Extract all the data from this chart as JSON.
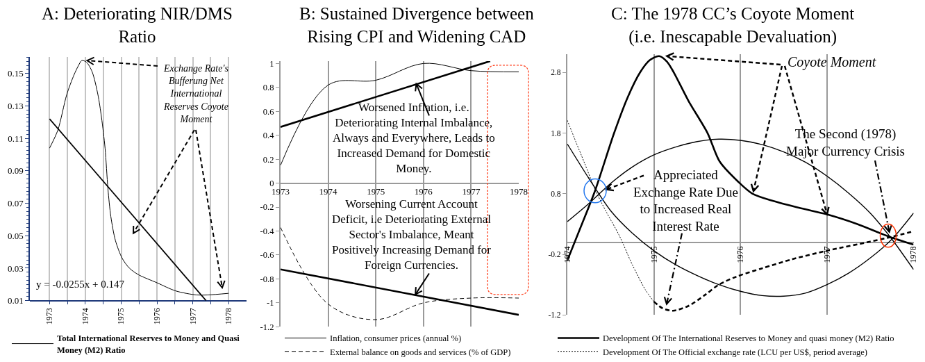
{
  "chart_data": [
    {
      "type": "line",
      "title": "A: Deteriorating NIR/DMS Ratio",
      "series": [
        {
          "name": "Total International Reserves to Money and Quasi Money (M2) Ratio",
          "color": "#000000",
          "x": [
            1973,
            1973.23,
            1973.48,
            1973.68,
            1973.81,
            1973.9,
            1974.03,
            1974.19,
            1974.35,
            1974.45,
            1974.55,
            1974.63,
            1974.71,
            1974.84,
            1975.03,
            1975.23,
            1975.48,
            1976,
            1976.52,
            1977.1,
            1977.42,
            1978
          ],
          "values": [
            0.104,
            0.115,
            0.137,
            0.149,
            0.155,
            0.158,
            0.157,
            0.151,
            0.137,
            0.123,
            0.104,
            0.079,
            0.062,
            0.047,
            0.036,
            0.03,
            0.026,
            0.021,
            0.016,
            0.0135,
            0.0135,
            0.0145
          ]
        },
        {
          "type": "line",
          "color": "#000000",
          "x": [
            1973,
            1977.37
          ],
          "values": [
            0.122,
            0.01
          ]
        }
      ],
      "xlim": [
        1972.45,
        1978.5
      ],
      "xticks": [
        1973,
        {
          "value": 1973.5,
          "label": null
        },
        1974,
        {
          "value": 1974.5,
          "label": null
        },
        1975,
        {
          "value": 1975.5,
          "label": null
        },
        1976,
        {
          "value": 1976.5,
          "label": null
        },
        1977,
        {
          "value": 1977.5,
          "label": null
        },
        1978
      ],
      "ylim": [
        0.01,
        0.16
      ],
      "yticks": [
        0.01,
        0.03,
        0.05,
        0.07,
        0.09,
        0.11,
        0.13,
        0.15
      ],
      "grid": "x",
      "legend": "bottom",
      "annotations": [
        "y = -0.0255x + 0.147",
        {
          "text": "Exchange Rate's Bufferung Net International Reserves Coyote Moment",
          "x": 1974.05,
          "y": 0.158
        }
      ]
    },
    {
      "type": "line",
      "title": "B: Sustained Divergence between Rising CPI and Widening CAD",
      "x": [
        1973,
        1974,
        1975,
        1976,
        1977,
        1978
      ],
      "series": [
        {
          "name": "Inflation, consumer prices (annual %)",
          "color": "#000000",
          "values": [
            0.15,
            0.82,
            0.86,
            1.0,
            0.94,
            0.93
          ]
        },
        {
          "name": "External balance on goods and services (% of GDP)",
          "color": "#000000",
          "line_style": "dashed",
          "values": [
            -0.37,
            -1.01,
            -1.14,
            -1.0,
            -0.96,
            -0.96
          ]
        },
        {
          "type": "line",
          "color": "#000000",
          "x": [
            1973,
            1977.4
          ],
          "values": [
            0.47,
            1.02
          ]
        },
        {
          "type": "line",
          "color": "#000000",
          "x": [
            1973,
            1978
          ],
          "values": [
            -0.72,
            -1.1
          ]
        }
      ],
      "xlim": [
        1973,
        1978
      ],
      "xticks": [
        1973,
        1974,
        1975,
        1976,
        1977,
        1978
      ],
      "ylim": [
        -1.2,
        1.02
      ],
      "yticks": [
        -1.2,
        -1,
        -0.8,
        -0.6,
        -0.4,
        -0.2,
        0,
        0.2,
        0.4,
        0.6,
        0.8,
        1
      ],
      "grid": "x",
      "legend": "bottom",
      "annotations": [
        {
          "text": "Worsened Inflation, i.e. Deteriorating Internal Imbalance, Always and Everywhere, Leads to Increased Demand for Domestic Money.",
          "x": 1975.85,
          "y": 0.83
        },
        {
          "text": "Worsening Current Account Deficit, i.e Deteriorating External Sector's Imbalance, Meant Positively Increasing Demand for Foreign Currencies.",
          "x": 1975.83,
          "y": -0.93
        }
      ]
    },
    {
      "type": "line",
      "title": "C: The 1978 CC’s Coyote Moment (i.e. Inescapable Devaluation)",
      "series": [
        {
          "name": "Development Of The International Reserves to Money and quasi money (M2) Ratio",
          "color": "#000000",
          "x": [
            1974,
            1974.16,
            1974.32,
            1974.54,
            1974.7,
            1974.84,
            1974.95,
            1975.06,
            1975.15,
            1975.23,
            1975.4,
            1975.62,
            1975.76,
            1975.98,
            1976.14,
            1976.38,
            1976.7,
            1977,
            1977.35,
            1977.72,
            1978
          ],
          "values": [
            -0.3,
            0.27,
            0.85,
            1.8,
            2.4,
            2.8,
            3.0,
            3.07,
            2.98,
            2.8,
            2.33,
            1.8,
            1.33,
            0.99,
            0.8,
            0.68,
            0.56,
            0.46,
            0.3,
            0.09,
            -0.04
          ]
        },
        {
          "type": "line",
          "color": "#000000",
          "x": [
            1974,
            1974.25,
            1974.5,
            1974.75,
            1975,
            1975.25,
            1975.5,
            1975.75,
            1976,
            1976.25,
            1976.5,
            1976.75,
            1977,
            1977.25,
            1977.5,
            1977.75,
            1978
          ],
          "values": [
            0.34,
            0.64,
            0.97,
            1.24,
            1.44,
            1.57,
            1.66,
            1.7,
            1.68,
            1.61,
            1.49,
            1.32,
            1.09,
            0.81,
            0.48,
            0.05,
            -0.45
          ]
        },
        {
          "type": "line",
          "color": "#000000",
          "x": [
            1974,
            1974.25,
            1974.5,
            1974.75,
            1975,
            1975.25,
            1975.5,
            1975.75,
            1976,
            1976.25,
            1976.5,
            1976.75,
            1977,
            1977.25,
            1977.5,
            1977.75,
            1978
          ],
          "values": [
            1.62,
            1.05,
            0.52,
            0.15,
            -0.14,
            -0.37,
            -0.55,
            -0.7,
            -0.81,
            -0.88,
            -0.89,
            -0.84,
            -0.7,
            -0.51,
            -0.26,
            0.05,
            0.48
          ]
        },
        {
          "name": "Development Of The Official exchange rate (LCU per US$, period average)",
          "color": "#000000",
          "line_style": "dotted",
          "x": [
            1974,
            1974.1,
            1974.2,
            1974.32,
            1974.45,
            1974.6,
            1974.75,
            1974.9,
            1975
          ],
          "values": [
            2.01,
            1.65,
            1.3,
            0.87,
            0.5,
            0.11,
            -0.37,
            -0.78,
            -0.98
          ]
        },
        {
          "type": "line",
          "color": "#000000",
          "line_style": "dashed",
          "x": [
            1975,
            1975.1,
            1975.22,
            1975.4,
            1975.6,
            1975.75,
            1975.95,
            1976.25,
            1976.6,
            1977,
            1977.5,
            1977.75,
            1978
          ],
          "values": [
            -0.98,
            -1.09,
            -1.13,
            -1.05,
            -0.86,
            -0.7,
            -0.57,
            -0.43,
            -0.28,
            -0.14,
            0.01,
            0.09,
            0.18
          ]
        }
      ],
      "xlim": [
        1974,
        1978
      ],
      "xticks": [
        1974,
        1975,
        1976,
        1977,
        1978
      ],
      "ylim": [
        -1.2,
        3.1
      ],
      "yticks": [
        -1.2,
        -0.2,
        0.8,
        1.8,
        2.8
      ],
      "grid": "x",
      "legend": "bottom",
      "annotations": [
        {
          "text": "Coyote Moment",
          "x": 1975.15,
          "y": 3.07
        },
        {
          "text": "The Second (1978) Major Currency Crisis",
          "x": 1977.72,
          "y": 0.17
        },
        {
          "text": "Appreciated Exchange Rate Due to Increased Real Interest Rate",
          "x": 1974.45,
          "y": 0.87
        }
      ]
    }
  ]
}
